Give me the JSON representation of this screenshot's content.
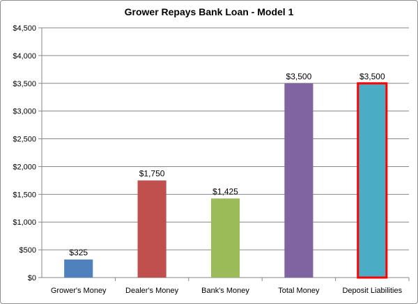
{
  "chart_data": {
    "type": "bar",
    "title": "Grower Repays Bank Loan - Model 1",
    "xlabel": "",
    "ylabel": "",
    "ylim": [
      0,
      4500
    ],
    "y_tick_step": 500,
    "y_tick_labels": [
      "$0",
      "$500",
      "$1,000",
      "$1,500",
      "$2,000",
      "$2,500",
      "$3,000",
      "$3,500",
      "$4,000",
      "$4,500"
    ],
    "grid": true,
    "legend": "none",
    "categories": [
      "Grower's Money",
      "Dealer's Money",
      "Bank's Money",
      "Total Money",
      "Deposit Liabilities"
    ],
    "values": [
      325,
      1750,
      1425,
      3500,
      3500
    ],
    "data_labels": [
      "$325",
      "$1,750",
      "$1,425",
      "$3,500",
      "$3,500"
    ],
    "colors": [
      "#4f81bd",
      "#c0504d",
      "#9bbb59",
      "#8064a2",
      "#4bacc6"
    ],
    "highlight": {
      "category": "Deposit Liabilities",
      "outline_color": "#ff0000"
    }
  }
}
